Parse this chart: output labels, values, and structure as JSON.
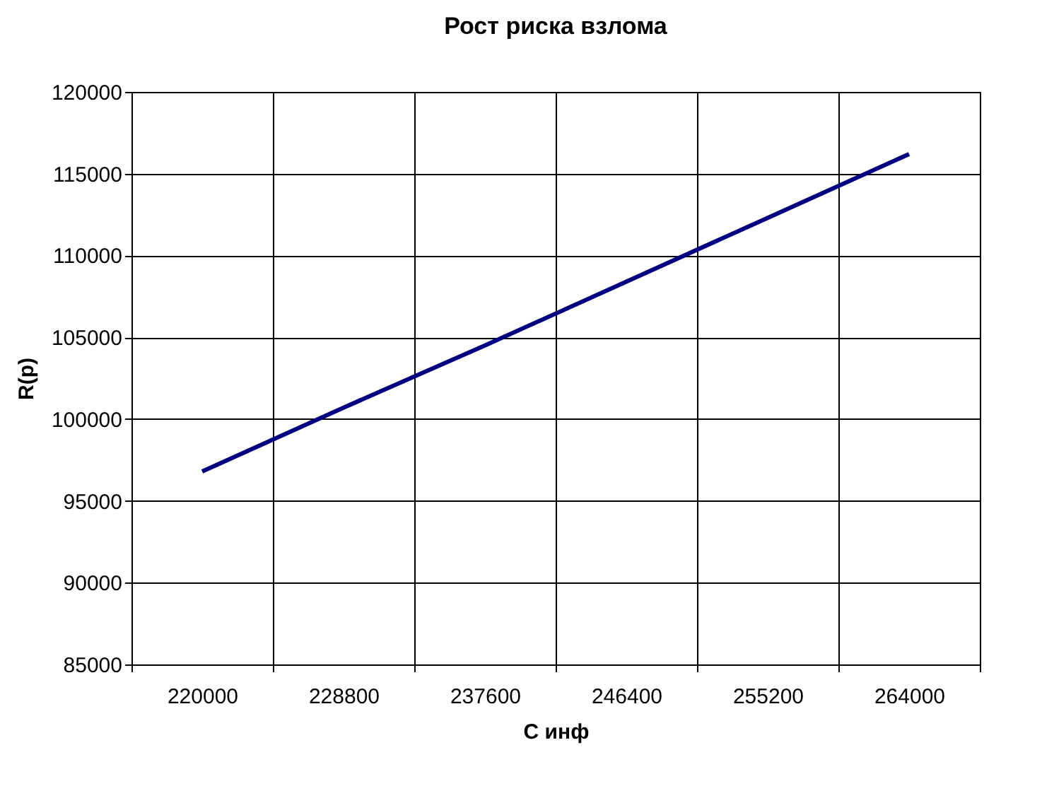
{
  "chart_data": {
    "type": "line",
    "title": "Рост риска взлома",
    "xlabel": "C инф",
    "ylabel": "R(р)",
    "categories": [
      "220000",
      "228800",
      "237600",
      "246400",
      "255200",
      "264000"
    ],
    "series": [
      {
        "color": "#000080",
        "values": [
          96800,
          100700,
          104500,
          108400,
          112300,
          116200
        ]
      }
    ],
    "ylim": [
      85000,
      120000
    ],
    "yticks": [
      85000,
      90000,
      95000,
      100000,
      105000,
      110000,
      115000,
      120000
    ],
    "grid": true,
    "legend": false,
    "marker": "none",
    "line_style": "solid"
  }
}
